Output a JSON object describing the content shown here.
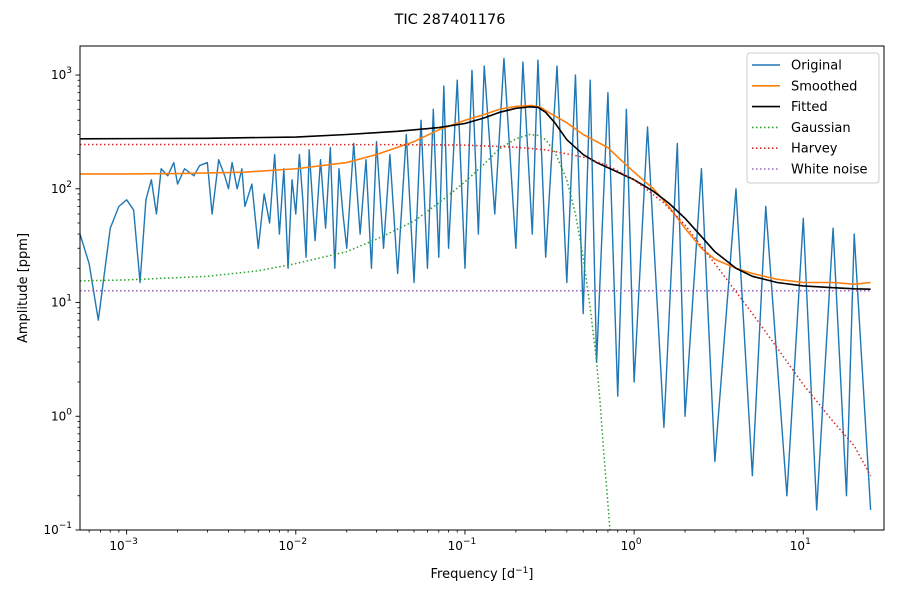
{
  "chart_data": {
    "type": "line",
    "title": "TIC 287401176",
    "xlabel": "Frequency [d",
    "xlabel_sup": "−1",
    "xlabel_end": "]",
    "ylabel": "Amplitude [ppm]",
    "xscale": "log",
    "yscale": "log",
    "xlim": [
      0.00053,
      30
    ],
    "ylim": [
      0.1,
      1800
    ],
    "grid": false,
    "legend_position": "top-right",
    "x_ticks": [
      {
        "base": "10",
        "exp": "−3",
        "value": 0.001
      },
      {
        "base": "10",
        "exp": "−2",
        "value": 0.01
      },
      {
        "base": "10",
        "exp": "−1",
        "value": 0.1
      },
      {
        "base": "10",
        "exp": "0",
        "value": 1
      },
      {
        "base": "10",
        "exp": "1",
        "value": 10
      }
    ],
    "y_ticks": [
      {
        "base": "10",
        "exp": "−1",
        "value": 0.1
      },
      {
        "base": "10",
        "exp": "0",
        "value": 1
      },
      {
        "base": "10",
        "exp": "1",
        "value": 10
      },
      {
        "base": "10",
        "exp": "2",
        "value": 100
      },
      {
        "base": "10",
        "exp": "3",
        "value": 1000
      }
    ],
    "series": [
      {
        "name": "Original",
        "color": "#1f77b4",
        "style": "solid",
        "x": [
          0.00053,
          0.0006,
          0.00068,
          0.0008,
          0.0009,
          0.001,
          0.0011,
          0.0012,
          0.0013,
          0.0014,
          0.0015,
          0.0016,
          0.00175,
          0.0019,
          0.002,
          0.0022,
          0.0025,
          0.0027,
          0.003,
          0.0032,
          0.0035,
          0.0038,
          0.004,
          0.0042,
          0.0045,
          0.0048,
          0.005,
          0.0055,
          0.006,
          0.0065,
          0.007,
          0.0075,
          0.008,
          0.0085,
          0.009,
          0.0095,
          0.01,
          0.0105,
          0.011,
          0.0115,
          0.012,
          0.013,
          0.014,
          0.015,
          0.016,
          0.017,
          0.018,
          0.019,
          0.02,
          0.022,
          0.024,
          0.026,
          0.028,
          0.03,
          0.033,
          0.036,
          0.04,
          0.045,
          0.05,
          0.055,
          0.06,
          0.065,
          0.07,
          0.075,
          0.08,
          0.09,
          0.1,
          0.11,
          0.12,
          0.13,
          0.15,
          0.17,
          0.2,
          0.22,
          0.25,
          0.27,
          0.3,
          0.35,
          0.4,
          0.45,
          0.5,
          0.55,
          0.6,
          0.7,
          0.8,
          0.9,
          1.0,
          1.2,
          1.5,
          1.8,
          2.0,
          2.5,
          3.0,
          4.0,
          5.0,
          6.0,
          8.0,
          10.0,
          12.0,
          15.0,
          18.0,
          20.0,
          25.0
        ],
        "y": [
          40,
          22,
          7,
          45,
          70,
          80,
          65,
          15,
          80,
          120,
          60,
          150,
          130,
          170,
          110,
          150,
          130,
          160,
          170,
          60,
          180,
          130,
          100,
          170,
          100,
          150,
          70,
          110,
          30,
          90,
          50,
          200,
          40,
          150,
          20,
          120,
          60,
          200,
          80,
          25,
          220,
          35,
          180,
          45,
          230,
          20,
          150,
          60,
          30,
          250,
          40,
          180,
          20,
          260,
          30,
          200,
          18,
          300,
          15,
          400,
          20,
          500,
          25,
          800,
          30,
          900,
          20,
          1100,
          40,
          1200,
          60,
          1400,
          30,
          1300,
          40,
          1350,
          25,
          1200,
          15,
          1000,
          8,
          900,
          3,
          700,
          1.5,
          500,
          2,
          350,
          0.8,
          250,
          1,
          150,
          0.4,
          100,
          0.3,
          70,
          0.2,
          55,
          0.15,
          45,
          0.2,
          40,
          0.15
        ]
      },
      {
        "name": "Smoothed",
        "color": "#ff7f0e",
        "style": "solid",
        "x": [
          0.00053,
          0.001,
          0.002,
          0.005,
          0.01,
          0.02,
          0.03,
          0.05,
          0.07,
          0.1,
          0.13,
          0.16,
          0.2,
          0.25,
          0.28,
          0.32,
          0.4,
          0.5,
          0.6,
          0.7,
          0.8,
          1.0,
          1.3,
          1.6,
          2.0,
          2.5,
          3.0,
          4.0,
          5.0,
          7.0,
          10.0,
          15.0,
          20.0,
          25.0
        ],
        "y": [
          135,
          135,
          136,
          140,
          150,
          170,
          200,
          260,
          330,
          400,
          450,
          500,
          530,
          540,
          520,
          460,
          380,
          300,
          260,
          230,
          190,
          140,
          100,
          70,
          45,
          30,
          24,
          20,
          18,
          16,
          15,
          15,
          14.5,
          15
        ]
      },
      {
        "name": "Fitted",
        "color": "#000000",
        "style": "solid",
        "x": [
          0.00053,
          0.001,
          0.003,
          0.01,
          0.02,
          0.04,
          0.07,
          0.1,
          0.13,
          0.16,
          0.2,
          0.24,
          0.27,
          0.3,
          0.34,
          0.4,
          0.5,
          0.6,
          0.8,
          1.0,
          1.3,
          1.6,
          2.0,
          2.5,
          3.0,
          4.0,
          5.0,
          7.0,
          10.0,
          15.0,
          20.0,
          25.0
        ],
        "y": [
          275,
          276,
          278,
          285,
          300,
          320,
          345,
          375,
          420,
          470,
          510,
          525,
          520,
          470,
          380,
          270,
          200,
          170,
          140,
          120,
          95,
          75,
          55,
          38,
          28,
          20,
          17,
          15,
          14,
          13.5,
          13.2,
          13.1
        ]
      },
      {
        "name": "Gaussian",
        "color": "#2ca02c",
        "style": "dotted",
        "x": [
          0.00053,
          0.001,
          0.003,
          0.006,
          0.01,
          0.02,
          0.03,
          0.05,
          0.07,
          0.1,
          0.13,
          0.16,
          0.2,
          0.24,
          0.27,
          0.3,
          0.34,
          0.4,
          0.45,
          0.5,
          0.55,
          0.6,
          0.63,
          0.66,
          0.7,
          0.72
        ],
        "y": [
          15.5,
          15.8,
          17,
          19,
          22,
          28,
          36,
          52,
          75,
          115,
          165,
          225,
          275,
          300,
          295,
          270,
          210,
          120,
          60,
          25,
          9,
          3,
          1.3,
          0.5,
          0.17,
          0.1
        ]
      },
      {
        "name": "Harvey",
        "color": "#d62728",
        "style": "dotted",
        "x": [
          0.00053,
          0.001,
          0.01,
          0.05,
          0.1,
          0.2,
          0.3,
          0.5,
          0.7,
          1.0,
          1.5,
          2.0,
          3.0,
          5.0,
          7.0,
          10.0,
          15.0,
          20.0,
          25.0
        ],
        "y": [
          245,
          245,
          245,
          244,
          242,
          232,
          220,
          190,
          160,
          120,
          75,
          48,
          22,
          8,
          4,
          1.9,
          0.9,
          0.55,
          0.3
        ]
      },
      {
        "name": "White noise",
        "color": "#9467bd",
        "style": "dotted",
        "x": [
          0.00053,
          25.0
        ],
        "y": [
          12.7,
          12.7
        ]
      }
    ]
  }
}
